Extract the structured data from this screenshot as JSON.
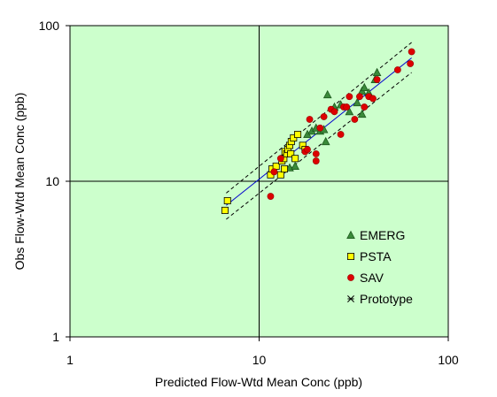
{
  "chart_data": {
    "type": "scatter",
    "xlabel": "Predicted Flow-Wtd Mean Conc (ppb)",
    "ylabel": "Obs Flow-Wtd Mean Conc (ppb)",
    "x_scale": "log",
    "y_scale": "log",
    "xlim": [
      1,
      100
    ],
    "ylim": [
      1,
      100
    ],
    "x_ticks": [
      "1",
      "10",
      "100"
    ],
    "y_ticks": [
      "1",
      "10",
      "100"
    ],
    "grid": "major lines at 10",
    "legend_position": "lower-right",
    "plot_background": "#ccffcc",
    "series": [
      {
        "name": "EMERG",
        "marker": "triangle",
        "color": "#3a8a3a",
        "points": [
          [
            14.5,
            12.2
          ],
          [
            15.5,
            12.5
          ],
          [
            18,
            20
          ],
          [
            19,
            21
          ],
          [
            20,
            22
          ],
          [
            21,
            21
          ],
          [
            22,
            21.5
          ],
          [
            22.5,
            18
          ],
          [
            23,
            36
          ],
          [
            25,
            30
          ],
          [
            27,
            31
          ],
          [
            30,
            28
          ],
          [
            33,
            32
          ],
          [
            35,
            38
          ],
          [
            36,
            40
          ],
          [
            38,
            37
          ],
          [
            41,
            45
          ],
          [
            42,
            50
          ],
          [
            35,
            27
          ]
        ]
      },
      {
        "name": "PSTA",
        "marker": "square",
        "color": "#ffff00",
        "points": [
          [
            6.6,
            6.5
          ],
          [
            6.8,
            7.5
          ],
          [
            11.5,
            11
          ],
          [
            11.7,
            12
          ],
          [
            12.3,
            12.5
          ],
          [
            13,
            11
          ],
          [
            13.2,
            13.5
          ],
          [
            13.5,
            14
          ],
          [
            13.6,
            12
          ],
          [
            13.7,
            15.5
          ],
          [
            14,
            15
          ],
          [
            14.2,
            16
          ],
          [
            14.5,
            17
          ],
          [
            14.7,
            15
          ],
          [
            14.8,
            18
          ],
          [
            15.2,
            19
          ],
          [
            15.5,
            14
          ],
          [
            16,
            20
          ],
          [
            17,
            17
          ],
          [
            17.5,
            16
          ]
        ]
      },
      {
        "name": "SAV",
        "marker": "circle",
        "color": "#dd0000",
        "points": [
          [
            11.5,
            8
          ],
          [
            12,
            11.5
          ],
          [
            13,
            14
          ],
          [
            17.5,
            15.5
          ],
          [
            18,
            16
          ],
          [
            18.5,
            25
          ],
          [
            20,
            15
          ],
          [
            20,
            13.5
          ],
          [
            21,
            22
          ],
          [
            22,
            26
          ],
          [
            24,
            29
          ],
          [
            25,
            28
          ],
          [
            27,
            20
          ],
          [
            28,
            30
          ],
          [
            29,
            30
          ],
          [
            30,
            35
          ],
          [
            32,
            25
          ],
          [
            34,
            35
          ],
          [
            36,
            30
          ],
          [
            38,
            35
          ],
          [
            40,
            34
          ],
          [
            42,
            45
          ],
          [
            54,
            52
          ],
          [
            63,
            57
          ],
          [
            64,
            68
          ]
        ]
      },
      {
        "name": "Prototype",
        "marker": "asterisk",
        "color": "#000000",
        "points": []
      }
    ],
    "lines": [
      {
        "name": "",
        "style": "solid",
        "color": "#0000cc",
        "points": [
          [
            6.7,
            7.0
          ],
          [
            64,
            62
          ]
        ]
      },
      {
        "name": "",
        "style": "dashed",
        "color": "#000000",
        "points": [
          [
            6.7,
            8.4
          ],
          [
            64,
            78
          ]
        ]
      },
      {
        "name": "",
        "style": "dashed",
        "color": "#000000",
        "points": [
          [
            6.7,
            5.7
          ],
          [
            64,
            50
          ]
        ]
      }
    ]
  }
}
